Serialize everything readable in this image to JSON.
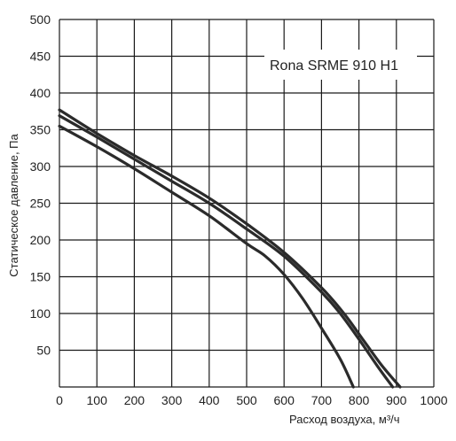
{
  "chart_data": {
    "type": "line",
    "title": "Rona SRME 910 H1",
    "xlabel": "Расход воздуха, м³/ч",
    "ylabel": "Статическое давление, Па",
    "xlim": [
      0,
      1000
    ],
    "ylim": [
      0,
      500
    ],
    "x_ticks": [
      0,
      100,
      200,
      300,
      400,
      500,
      600,
      700,
      800,
      900,
      1000
    ],
    "y_ticks": [
      50,
      100,
      150,
      200,
      250,
      300,
      350,
      400,
      450,
      500
    ],
    "grid": true,
    "legend": "top-right",
    "series": [
      {
        "color": "#2b2b2b",
        "x": [
          0,
          100,
          200,
          300,
          400,
          500,
          600,
          700,
          760,
          810,
          860,
          910
        ],
        "y": [
          377,
          345,
          315,
          287,
          257,
          222,
          183,
          135,
          100,
          65,
          30,
          0
        ]
      },
      {
        "color": "#2b2b2b",
        "x": [
          0,
          100,
          200,
          300,
          400,
          500,
          600,
          700,
          750,
          800,
          850,
          890
        ],
        "y": [
          369,
          340,
          310,
          280,
          250,
          215,
          178,
          129,
          100,
          65,
          28,
          0
        ]
      },
      {
        "color": "#2b2b2b",
        "x": [
          0,
          100,
          200,
          300,
          400,
          500,
          550,
          600,
          650,
          700,
          750,
          785
        ],
        "y": [
          355,
          327,
          297,
          265,
          233,
          195,
          178,
          153,
          120,
          80,
          38,
          0
        ]
      }
    ]
  }
}
